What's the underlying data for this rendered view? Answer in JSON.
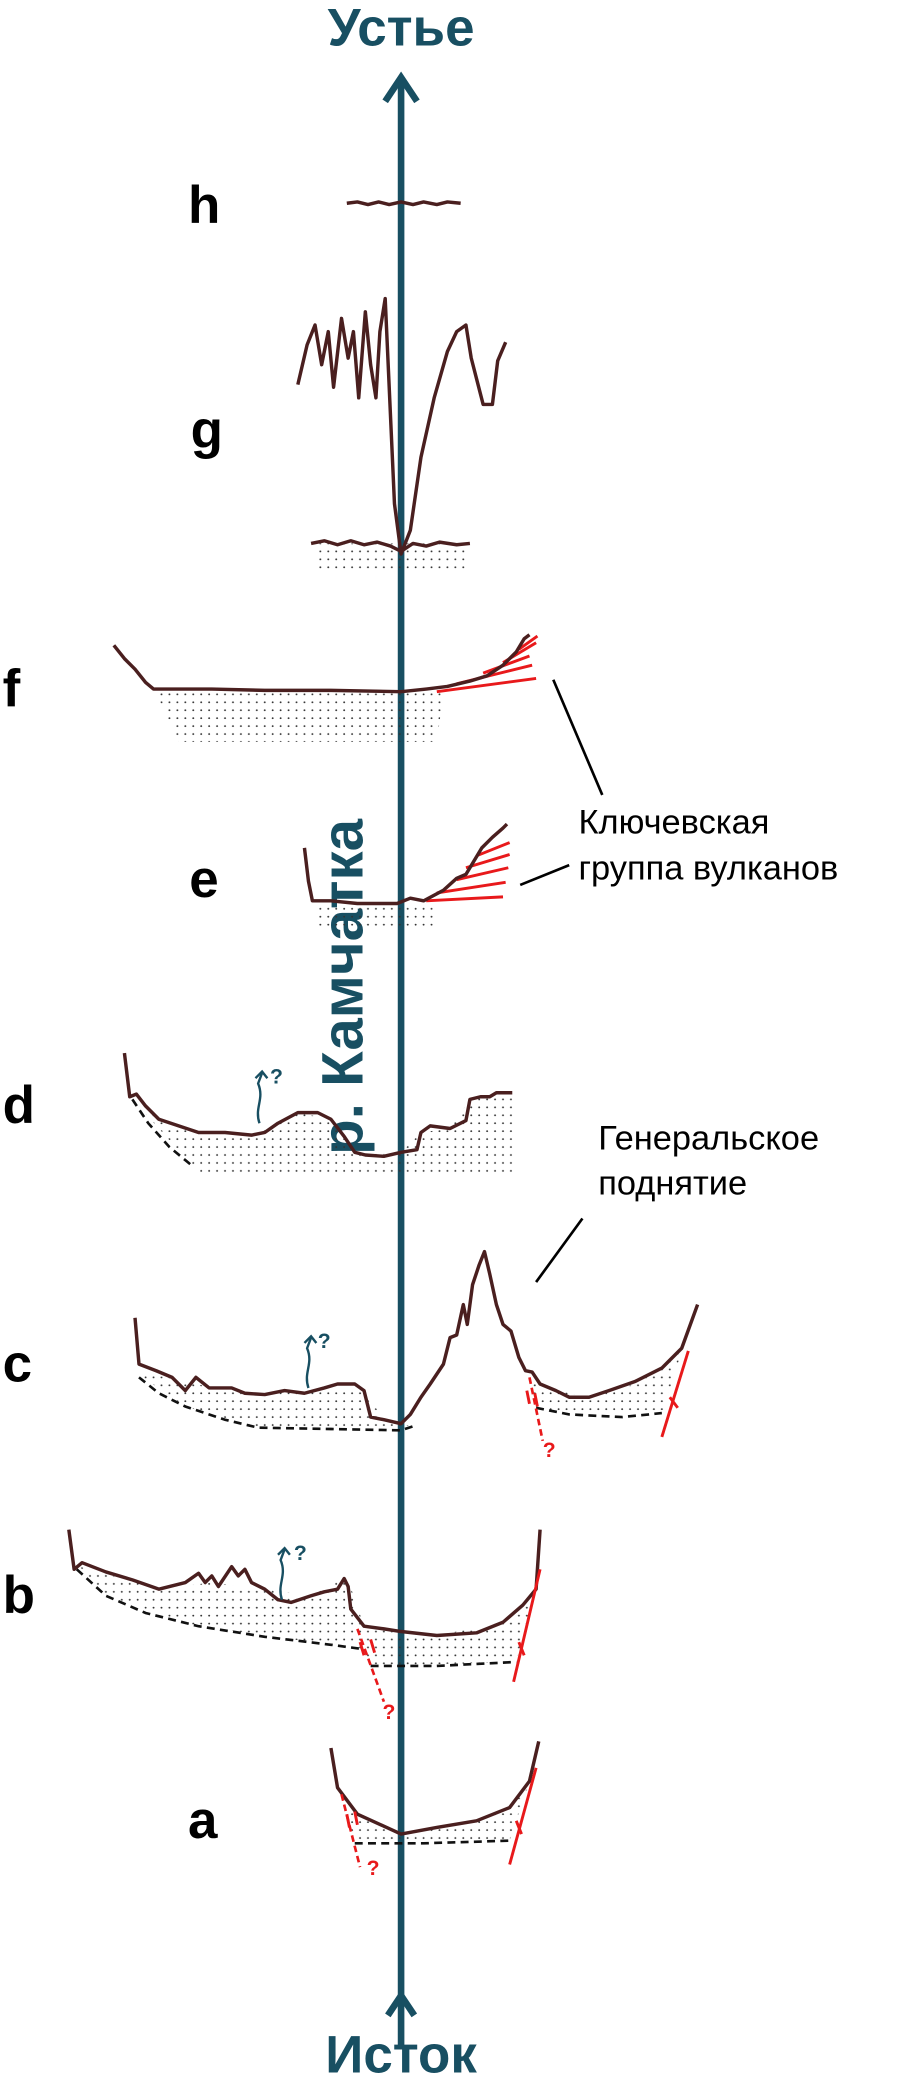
{
  "axis": {
    "top_label": "Устье",
    "bottom_label": "Исток",
    "river_label": "р. Камчатка"
  },
  "profiles": {
    "h": "h",
    "g": "g",
    "f": "f",
    "e": "e",
    "d": "d",
    "c": "c",
    "b": "b",
    "a": "a"
  },
  "annotations": {
    "klyuchevskaya_line1": "Ключевская",
    "klyuchevskaya_line2": "группа вулканов",
    "generalskoe_line1": "Генеральское",
    "generalskoe_line2": "поднятие",
    "question": "?"
  },
  "colors": {
    "river": "#184f62",
    "profile": "#4a1f1f",
    "fault": "#e8191b"
  }
}
